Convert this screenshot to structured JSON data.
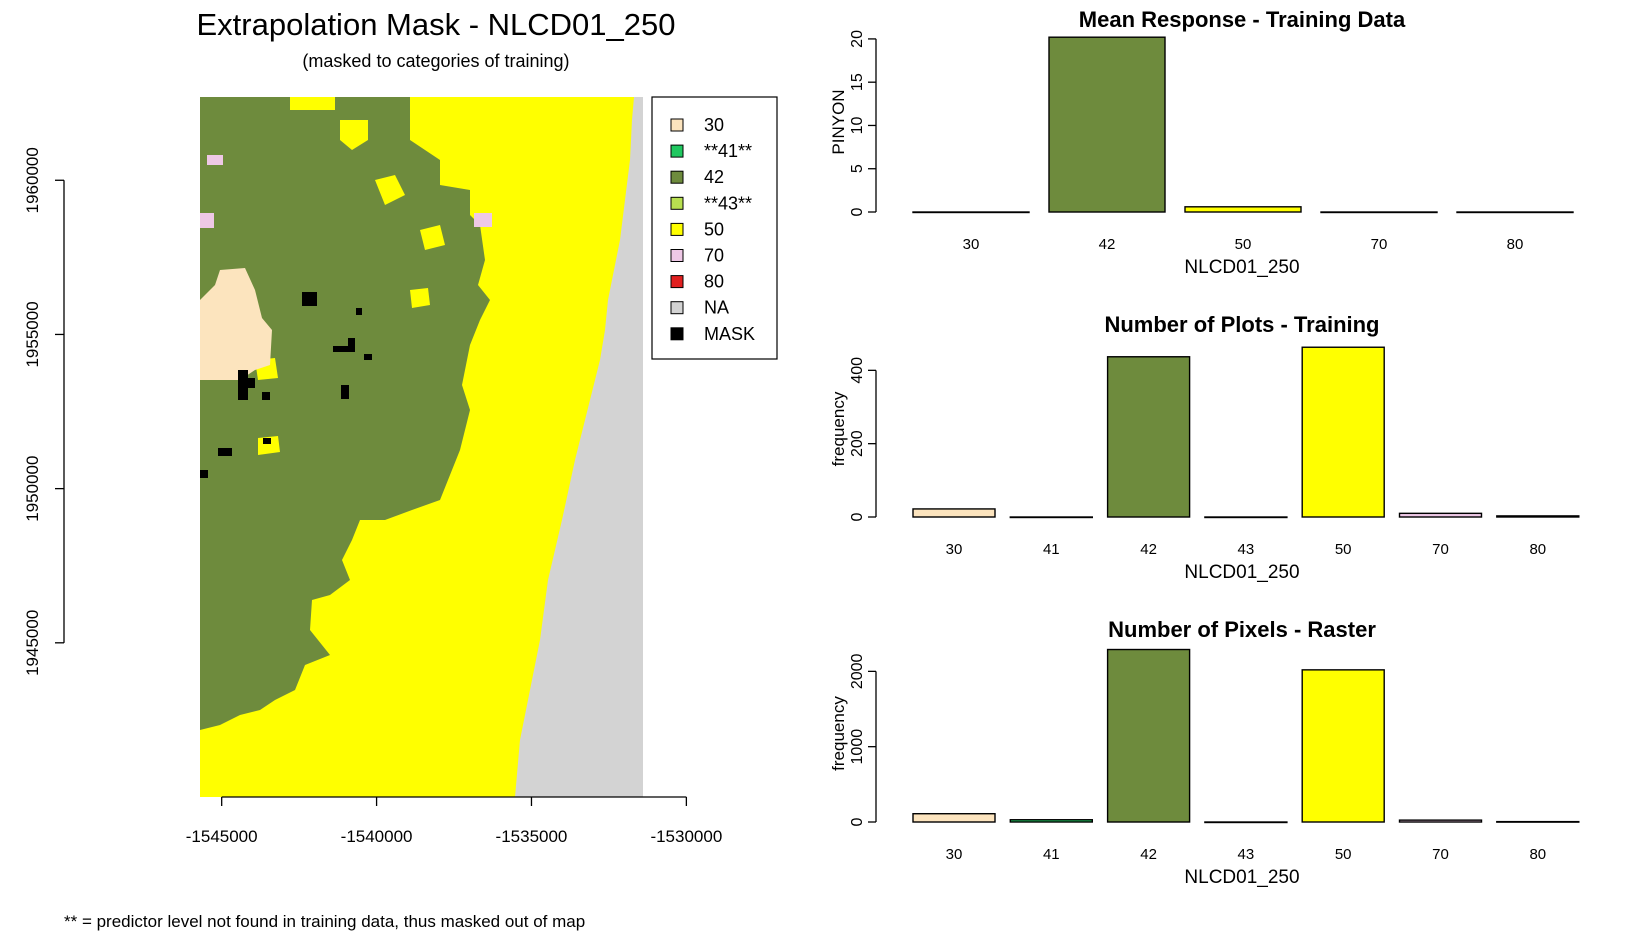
{
  "chart_data": [
    {
      "type": "map",
      "title": "Extrapolation Mask - NLCD01_250",
      "subtitle": "(masked to categories of training)",
      "x_ticks": [
        "-1545000",
        "-1540000",
        "-1535000",
        "-1530000"
      ],
      "y_ticks": [
        "1960000",
        "1955000",
        "1950000",
        "1945000"
      ],
      "xlim": [
        -1545700,
        -1531400
      ],
      "ylim": [
        1940000,
        1962700
      ],
      "legend_placement": "top-right",
      "legend": [
        {
          "label": "30",
          "color": "#FCE4BE"
        },
        {
          "label": "**41**",
          "color": "#20C860"
        },
        {
          "label": "42",
          "color": "#6E8B3D"
        },
        {
          "label": "**43**",
          "color": "#B8E050"
        },
        {
          "label": "50",
          "color": "#FFFF00"
        },
        {
          "label": "70",
          "color": "#EEC8E6"
        },
        {
          "label": "80",
          "color": "#E02020"
        },
        {
          "label": "NA",
          "color": "#D3D3D3"
        },
        {
          "label": "MASK",
          "color": "#000000"
        }
      ],
      "footnote": "** = predictor level not found in training data, thus masked out of map"
    },
    {
      "type": "bar",
      "title": "Mean Response - Training Data",
      "xlabel": "NLCD01_250",
      "ylabel": "PINYON",
      "categories": [
        "30",
        "42",
        "50",
        "70",
        "80"
      ],
      "values": [
        0,
        20.2,
        0.6,
        0,
        0
      ],
      "colors": [
        "#FCE4BE",
        "#6E8B3D",
        "#FFFF00",
        "#EEC8E6",
        "#E02020"
      ],
      "y_ticks": [
        0,
        5,
        10,
        15,
        20
      ],
      "ylim": [
        0,
        20.8
      ]
    },
    {
      "type": "bar",
      "title": "Number of Plots - Training",
      "xlabel": "NLCD01_250",
      "ylabel": "frequency",
      "categories": [
        "30",
        "41",
        "42",
        "43",
        "50",
        "70",
        "80"
      ],
      "values": [
        22,
        0,
        437,
        0,
        463,
        10,
        3
      ],
      "colors": [
        "#FCE4BE",
        "#20C860",
        "#6E8B3D",
        "#B8E050",
        "#FFFF00",
        "#EEC8E6",
        "#E02020"
      ],
      "y_ticks": [
        0,
        200,
        400
      ],
      "ylim": [
        0,
        480
      ]
    },
    {
      "type": "bar",
      "title": "Number of Pixels - Raster",
      "xlabel": "NLCD01_250",
      "ylabel": "frequency",
      "categories": [
        "30",
        "41",
        "42",
        "43",
        "50",
        "70",
        "80"
      ],
      "values": [
        110,
        30,
        2290,
        0,
        2020,
        25,
        5
      ],
      "colors": [
        "#FCE4BE",
        "#20C860",
        "#6E8B3D",
        "#B8E050",
        "#FFFF00",
        "#EEC8E6",
        "#E02020"
      ],
      "y_ticks": [
        0,
        1000,
        2000
      ],
      "ylim": [
        0,
        2350
      ]
    }
  ]
}
